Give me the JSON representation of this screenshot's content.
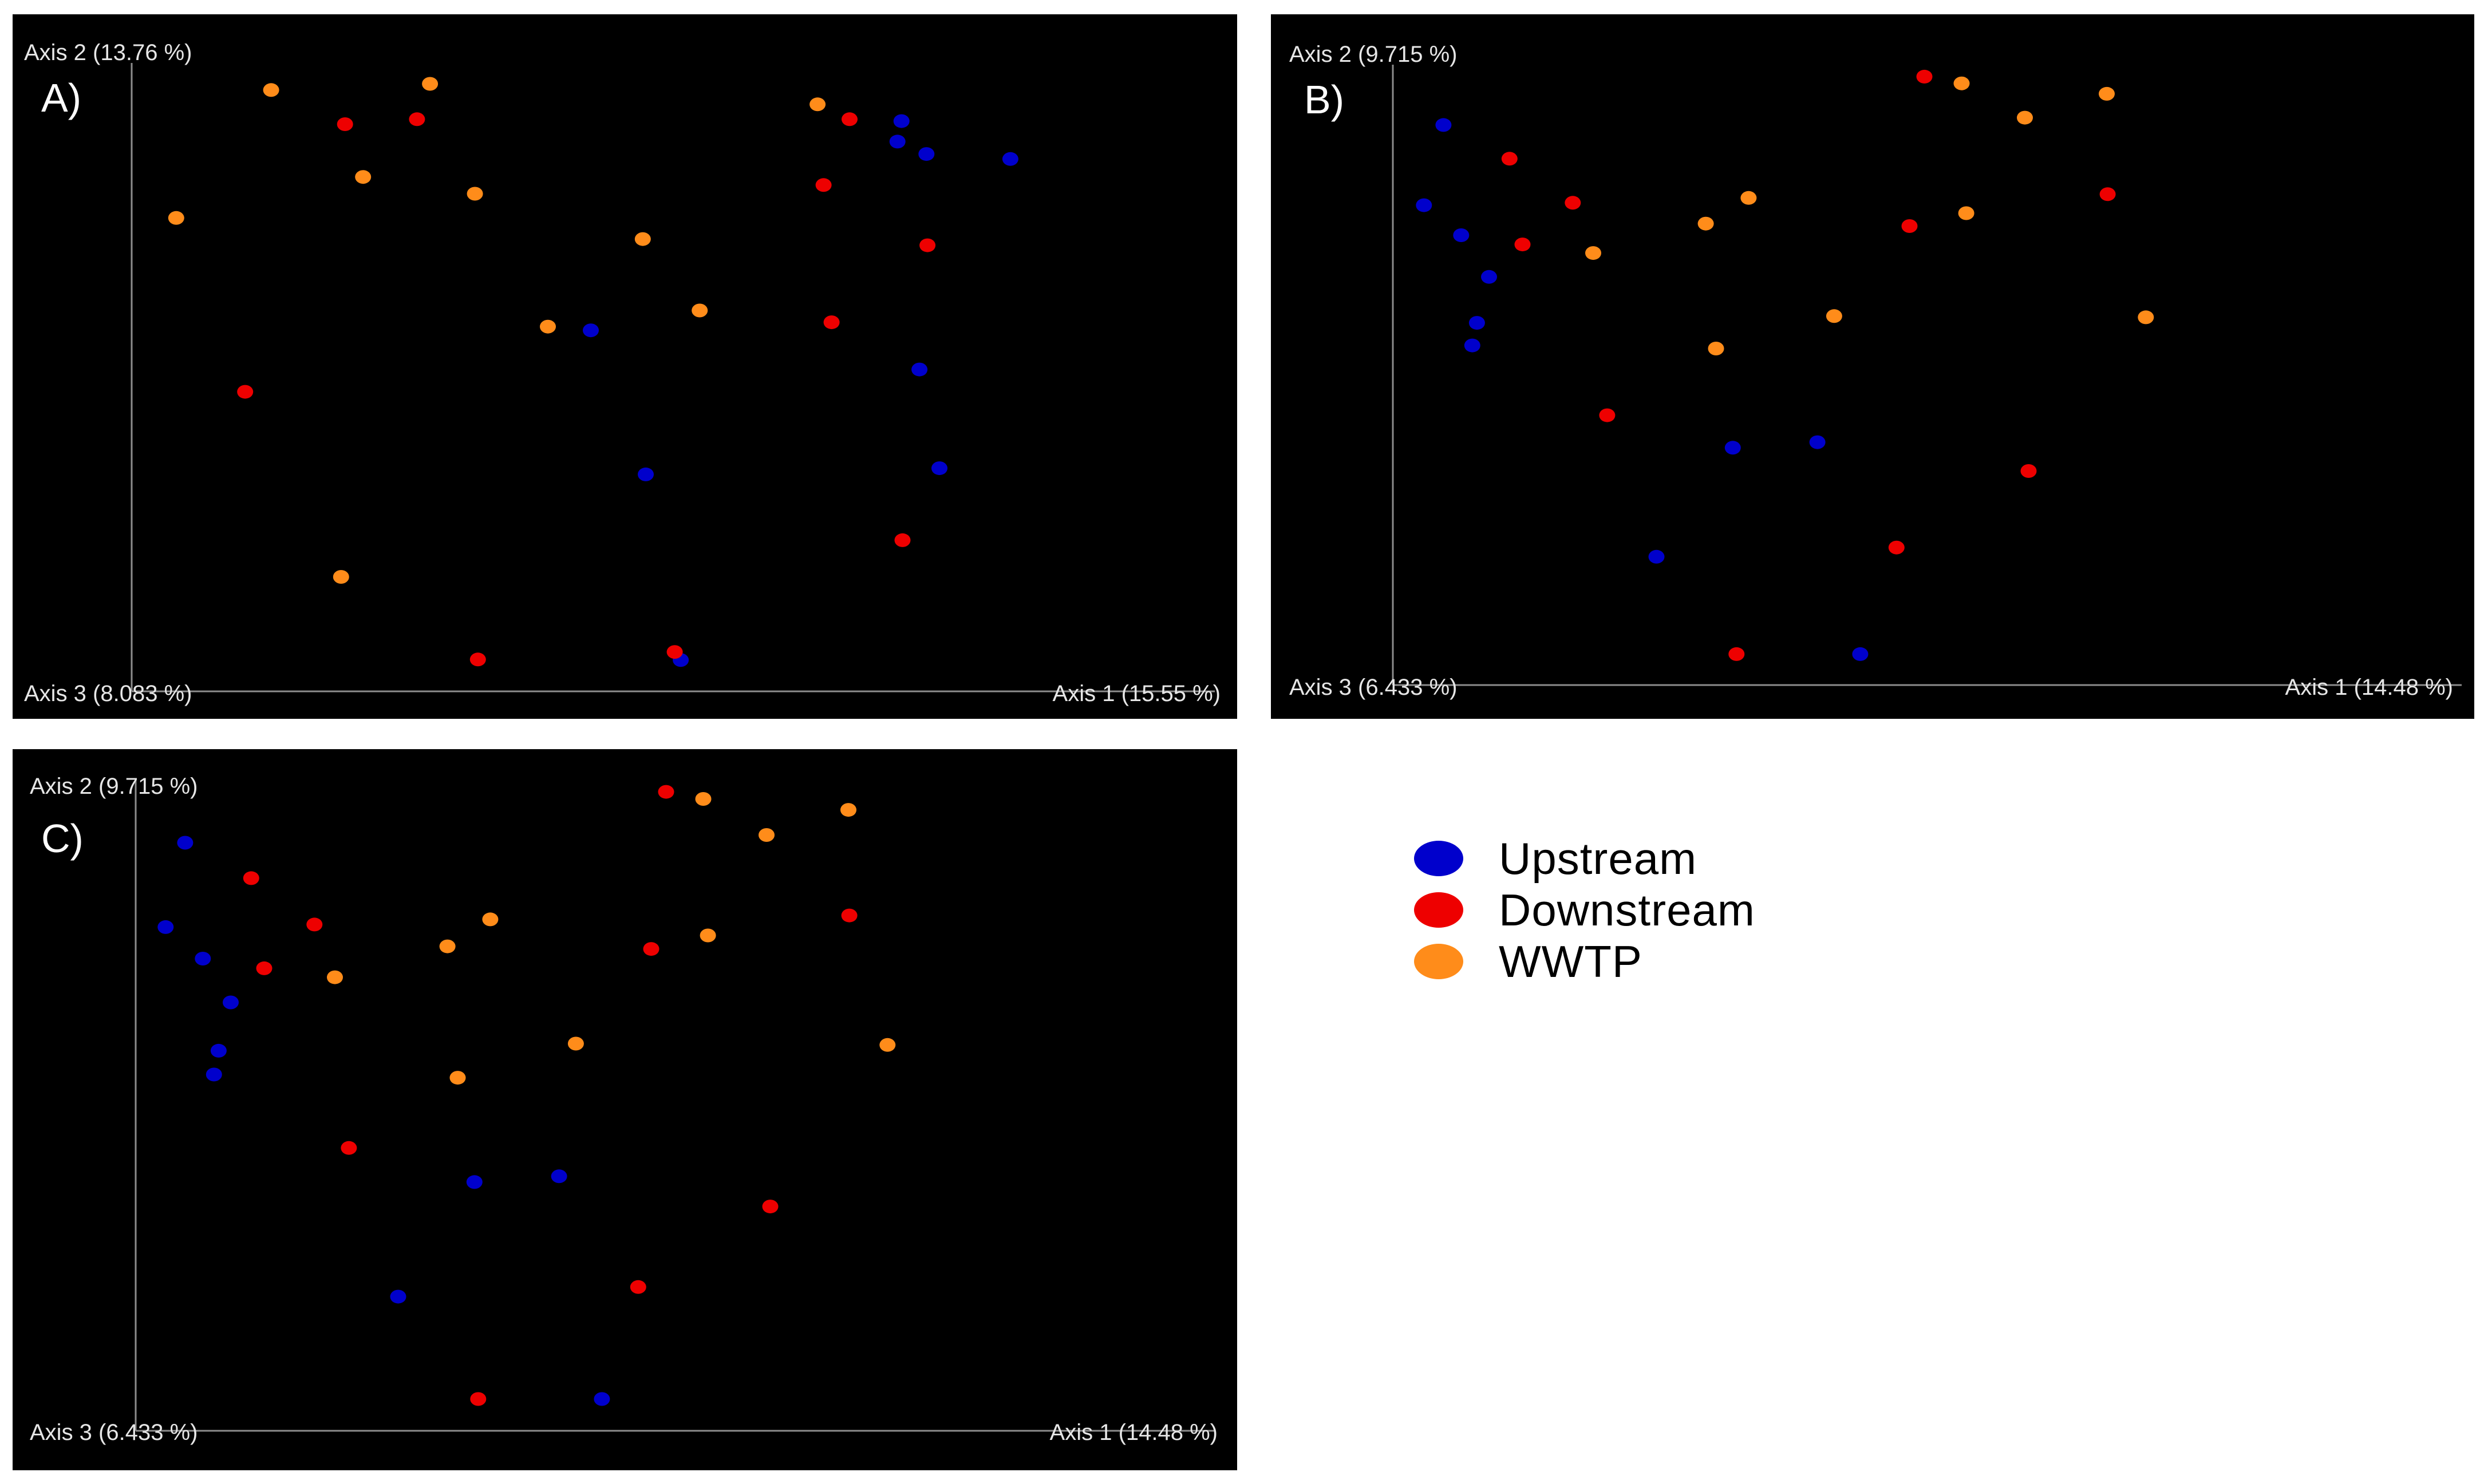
{
  "colors": {
    "Upstream": "#0000cc",
    "Downstream": "#ee0000",
    "WWTP": "#ff8c1a"
  },
  "legend": [
    {
      "label": "Upstream",
      "color": "#0000cc"
    },
    {
      "label": "Downstream",
      "color": "#ee0000"
    },
    {
      "label": "WWTP",
      "color": "#ff8c1a"
    }
  ],
  "chart_data": [
    {
      "type": "scatter",
      "panel_label": "A)",
      "axis_labels": {
        "y": "Axis 2 (13.76 %)",
        "z": "Axis 3 (8.083 %)",
        "x": "Axis 1 (15.55 %)"
      },
      "xlim": [
        0,
        100
      ],
      "ylim": [
        0,
        100
      ],
      "grid": false,
      "series": [
        {
          "name": "Upstream",
          "points": [
            [
              75.8,
              91.1
            ],
            [
              75.4,
              87.8
            ],
            [
              78.3,
              85.8
            ],
            [
              86.7,
              85.0
            ],
            [
              44.7,
              57.4
            ],
            [
              77.6,
              51.1
            ],
            [
              50.2,
              34.2
            ],
            [
              79.6,
              35.2
            ],
            [
              53.7,
              4.3
            ]
          ]
        },
        {
          "name": "Downstream",
          "points": [
            [
              20.1,
              90.6
            ],
            [
              27.3,
              91.4
            ],
            [
              70.6,
              91.4
            ],
            [
              68.0,
              80.8
            ],
            [
              78.4,
              71.1
            ],
            [
              68.8,
              58.7
            ],
            [
              10.1,
              47.5
            ],
            [
              75.9,
              23.6
            ],
            [
              33.4,
              4.4
            ],
            [
              53.1,
              5.6
            ]
          ]
        },
        {
          "name": "WWTP",
          "points": [
            [
              12.7,
              96.1
            ],
            [
              28.6,
              97.1
            ],
            [
              67.4,
              93.8
            ],
            [
              21.9,
              82.1
            ],
            [
              33.1,
              79.4
            ],
            [
              3.2,
              75.5
            ],
            [
              49.9,
              72.1
            ],
            [
              55.6,
              60.6
            ],
            [
              40.4,
              58.0
            ],
            [
              19.7,
              17.7
            ]
          ]
        }
      ]
    },
    {
      "type": "scatter",
      "panel_label": "B)",
      "axis_labels": {
        "y": "Axis 2 (9.715 %)",
        "z": "Axis 3 (6.433 %)",
        "x": "Axis 1 (14.48 %)"
      },
      "xlim": [
        0,
        100
      ],
      "ylim": [
        0,
        100
      ],
      "grid": false,
      "series": [
        {
          "name": "Upstream",
          "points": [
            [
              4.7,
              90.8
            ],
            [
              2.6,
              77.7
            ],
            [
              6.6,
              72.8
            ],
            [
              9.6,
              66.0
            ],
            [
              8.3,
              58.5
            ],
            [
              7.8,
              54.8
            ],
            [
              35.8,
              38.1
            ],
            [
              44.9,
              39.0
            ],
            [
              27.6,
              20.3
            ],
            [
              49.5,
              4.4
            ]
          ]
        },
        {
          "name": "Downstream",
          "points": [
            [
              11.8,
              85.3
            ],
            [
              18.6,
              78.1
            ],
            [
              13.2,
              71.3
            ],
            [
              22.3,
              43.4
            ],
            [
              56.4,
              98.7
            ],
            [
              54.8,
              74.3
            ],
            [
              76.1,
              79.5
            ],
            [
              67.6,
              34.3
            ],
            [
              53.4,
              21.8
            ],
            [
              36.2,
              4.4
            ]
          ]
        },
        {
          "name": "WWTP",
          "points": [
            [
              20.8,
              69.9
            ],
            [
              32.9,
              74.7
            ],
            [
              37.5,
              78.9
            ],
            [
              60.4,
              97.6
            ],
            [
              67.2,
              92.0
            ],
            [
              76.0,
              95.9
            ],
            [
              60.9,
              76.4
            ],
            [
              46.7,
              59.6
            ],
            [
              80.2,
              59.4
            ],
            [
              34.0,
              54.3
            ]
          ]
        }
      ]
    },
    {
      "type": "scatter",
      "panel_label": "C)",
      "axis_labels": {
        "y": "Axis 2 (9.715 %)",
        "z": "Axis 3 (6.433 %)",
        "x": "Axis 1 (14.48 %)"
      },
      "xlim": [
        0,
        100
      ],
      "ylim": [
        0,
        100
      ],
      "grid": false,
      "series": [
        {
          "name": "Upstream",
          "points": [
            [
              4.7,
              90.8
            ],
            [
              2.6,
              77.7
            ],
            [
              6.6,
              72.8
            ],
            [
              9.6,
              66.0
            ],
            [
              8.3,
              58.5
            ],
            [
              7.8,
              54.8
            ],
            [
              35.8,
              38.1
            ],
            [
              44.9,
              39.0
            ],
            [
              27.6,
              20.3
            ],
            [
              49.5,
              4.4
            ]
          ]
        },
        {
          "name": "Downstream",
          "points": [
            [
              11.8,
              85.3
            ],
            [
              18.6,
              78.1
            ],
            [
              13.2,
              71.3
            ],
            [
              22.3,
              43.4
            ],
            [
              56.4,
              98.7
            ],
            [
              54.8,
              74.3
            ],
            [
              76.1,
              79.5
            ],
            [
              67.6,
              34.3
            ],
            [
              53.4,
              21.8
            ],
            [
              36.2,
              4.4
            ]
          ]
        },
        {
          "name": "WWTP",
          "points": [
            [
              20.8,
              69.9
            ],
            [
              32.9,
              74.7
            ],
            [
              37.5,
              78.9
            ],
            [
              60.4,
              97.6
            ],
            [
              67.2,
              92.0
            ],
            [
              76.0,
              95.9
            ],
            [
              60.9,
              76.4
            ],
            [
              46.7,
              59.6
            ],
            [
              80.2,
              59.4
            ],
            [
              34.0,
              54.3
            ]
          ]
        }
      ]
    }
  ]
}
